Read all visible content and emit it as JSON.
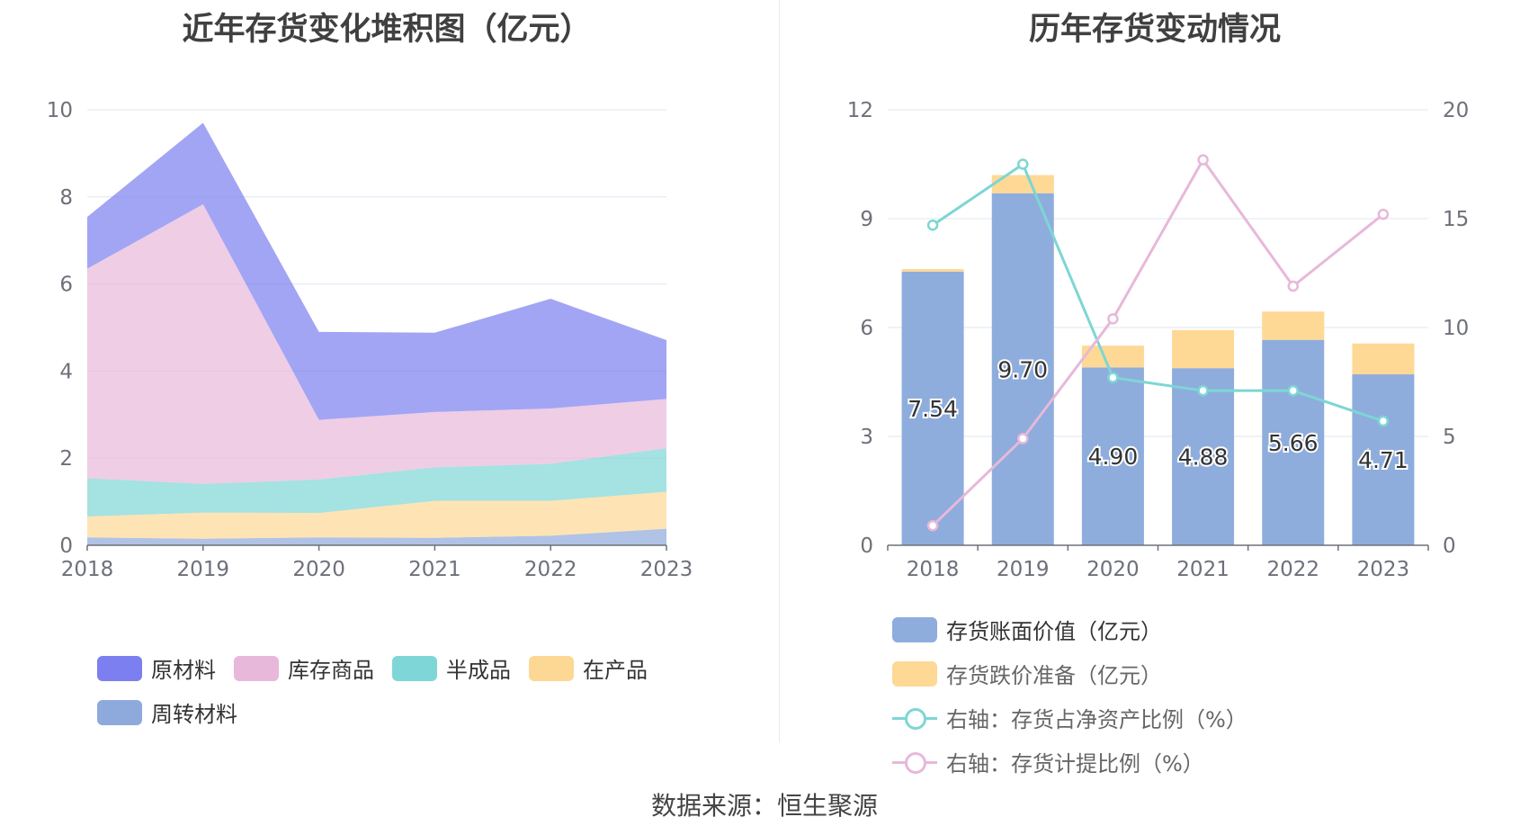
{
  "left_chart": {
    "title": "近年存货变化堆积图（亿元）"
  },
  "right_chart": {
    "title": "历年存货变动情况"
  },
  "source": "数据来源：恒生聚源",
  "chart_data": [
    {
      "type": "area",
      "stacked": true,
      "title": "近年存货变化堆积图（亿元）",
      "categories": [
        "2018",
        "2019",
        "2020",
        "2021",
        "2022",
        "2023"
      ],
      "ylim": [
        0,
        10
      ],
      "yticks": [
        0,
        2,
        4,
        6,
        8,
        10
      ],
      "grid": true,
      "legend_position": "bottom",
      "series": [
        {
          "name": "周转材料",
          "color": "#8eaadc",
          "values": [
            0.18,
            0.15,
            0.18,
            0.17,
            0.22,
            0.38
          ]
        },
        {
          "name": "在产品",
          "color": "#fdd894",
          "values": [
            0.48,
            0.6,
            0.56,
            0.85,
            0.8,
            0.85
          ]
        },
        {
          "name": "半成品",
          "color": "#7fd6d6",
          "values": [
            0.88,
            0.66,
            0.77,
            0.77,
            0.85,
            1.0
          ]
        },
        {
          "name": "库存商品",
          "color": "#e8b8da",
          "values": [
            4.81,
            6.42,
            1.37,
            1.27,
            1.27,
            1.13
          ]
        },
        {
          "name": "原材料",
          "color": "#7b7ff0",
          "values": [
            1.19,
            1.87,
            2.02,
            1.82,
            2.52,
            1.35
          ]
        }
      ]
    },
    {
      "type": "bar",
      "stacked": true,
      "title": "历年存货变动情况",
      "categories": [
        "2018",
        "2019",
        "2020",
        "2021",
        "2022",
        "2023"
      ],
      "ylim": [
        0,
        12
      ],
      "yticks": [
        0,
        3,
        6,
        9,
        12
      ],
      "y2lim": [
        0,
        20
      ],
      "y2ticks": [
        0,
        5,
        10,
        15,
        20
      ],
      "grid": true,
      "legend_position": "bottom",
      "series": [
        {
          "name": "存货账面价值（亿元）",
          "kind": "bar",
          "color": "#8eaddc",
          "values": [
            7.54,
            9.7,
            4.9,
            4.88,
            5.66,
            4.71
          ],
          "labels": [
            "7.54",
            "9.70",
            "4.90",
            "4.88",
            "5.66",
            "4.71"
          ]
        },
        {
          "name": "存货跌价准备（亿元）",
          "kind": "bar",
          "color": "#fed895",
          "values": [
            0.07,
            0.5,
            0.6,
            1.05,
            0.78,
            0.85
          ]
        },
        {
          "name": "右轴：存货占净资产比例（%）",
          "kind": "line",
          "axis": "right",
          "color": "#7dd6d4",
          "values": [
            14.7,
            17.5,
            7.7,
            7.1,
            7.1,
            5.7
          ]
        },
        {
          "name": "右轴：存货计提比例（%）",
          "kind": "line",
          "axis": "right",
          "color": "#e7b8da",
          "values": [
            0.9,
            4.9,
            10.4,
            17.7,
            11.9,
            15.2
          ]
        }
      ]
    }
  ]
}
